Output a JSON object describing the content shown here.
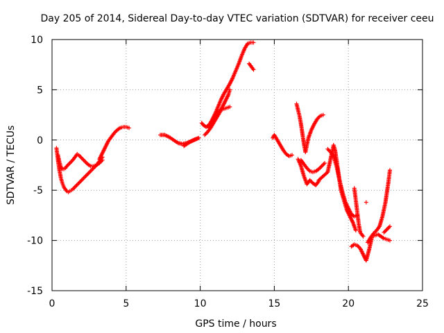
{
  "chart_data": {
    "type": "scatter",
    "title": "Day 205 of 2014, Sidereal Day-to-day VTEC variation (SDTVAR) for receiver ceeu",
    "xlabel": "GPS time / hours",
    "ylabel": "SDTVAR / TECUs",
    "xlim": [
      0,
      25
    ],
    "ylim": [
      -15,
      10
    ],
    "x_ticks": [
      0,
      5,
      10,
      15,
      20,
      25
    ],
    "y_ticks": [
      -15,
      -10,
      -5,
      0,
      5,
      10
    ],
    "x_tick_labels": [
      "0",
      "5",
      "10",
      "15",
      "20",
      "25"
    ],
    "y_tick_labels": [
      "-15",
      "-10",
      "-5",
      "0",
      "5",
      "10"
    ],
    "grid": true,
    "marker": "+",
    "series": [
      {
        "name": "SDTVAR",
        "color": "#ff0000",
        "tracks": [
          {
            "x": [
              0.3,
              0.4,
              0.5,
              0.6,
              0.7,
              0.8,
              0.9,
              1.0,
              1.1,
              1.2,
              1.3,
              1.4,
              1.6,
              1.8,
              2.0,
              2.2,
              2.4,
              2.6,
              2.8,
              3.0,
              3.2,
              3.4
            ],
            "y": [
              -0.8,
              -2.0,
              -3.0,
              -3.8,
              -4.3,
              -4.7,
              -4.9,
              -5.1,
              -5.2,
              -5.1,
              -5.0,
              -4.9,
              -4.6,
              -4.3,
              -4.0,
              -3.7,
              -3.4,
              -3.1,
              -2.8,
              -2.5,
              -2.1,
              -1.7
            ]
          },
          {
            "x": [
              0.4,
              0.5,
              0.6,
              0.7,
              0.8,
              0.9,
              1.0,
              1.2,
              1.4,
              1.6,
              1.7,
              1.8,
              2.0,
              2.2,
              2.4,
              2.6,
              2.8,
              3.0,
              3.2,
              3.4
            ],
            "y": [
              -1.5,
              -2.2,
              -2.7,
              -2.9,
              -2.9,
              -2.8,
              -2.6,
              -2.3,
              -2.0,
              -1.6,
              -1.4,
              -1.5,
              -1.8,
              -2.1,
              -2.4,
              -2.6,
              -2.6,
              -2.5,
              -2.3,
              -2.0
            ]
          },
          {
            "x": [
              3.2,
              3.4,
              3.6,
              3.8,
              4.0,
              4.2,
              4.4,
              4.6,
              4.8,
              5.0,
              5.2
            ],
            "y": [
              -1.9,
              -1.3,
              -0.7,
              -0.1,
              0.3,
              0.7,
              1.0,
              1.2,
              1.3,
              1.3,
              1.2
            ]
          },
          {
            "x": [
              7.3,
              7.6,
              7.9,
              8.2,
              8.5,
              8.8,
              9.1,
              9.4,
              9.7,
              9.9
            ],
            "y": [
              0.5,
              0.5,
              0.3,
              0.0,
              -0.3,
              -0.4,
              -0.3,
              -0.1,
              0.1,
              0.2
            ]
          },
          {
            "x": [
              8.9,
              9.1,
              9.3,
              9.6,
              9.9
            ],
            "y": [
              -0.6,
              -0.4,
              -0.2,
              0.0,
              0.2
            ]
          },
          {
            "x": [
              10.1,
              10.2,
              10.4,
              10.6,
              10.8,
              11.0,
              11.2,
              11.4,
              11.6,
              11.8,
              12.0,
              12.2,
              12.4,
              12.6,
              12.8,
              13.0,
              13.2,
              13.4,
              13.6
            ],
            "y": [
              1.7,
              1.5,
              1.3,
              1.5,
              2.0,
              2.6,
              3.3,
              4.0,
              4.6,
              5.1,
              5.6,
              6.2,
              6.9,
              7.6,
              8.4,
              9.1,
              9.6,
              9.7,
              9.7
            ]
          },
          {
            "x": [
              10.3,
              10.5,
              10.7,
              10.9,
              11.1,
              11.3,
              11.5,
              11.7,
              11.9,
              12.0
            ],
            "y": [
              0.5,
              0.8,
              1.2,
              1.7,
              2.2,
              2.7,
              3.3,
              3.9,
              4.5,
              5.0
            ]
          },
          {
            "x": [
              10.6,
              10.8,
              11.0,
              11.2,
              11.4,
              11.6,
              11.8,
              12.0
            ],
            "y": [
              1.2,
              1.8,
              2.4,
              2.8,
              3.0,
              3.1,
              3.2,
              3.3
            ]
          },
          {
            "x": [
              13.3,
              13.4,
              13.5,
              13.6
            ],
            "y": [
              7.6,
              7.4,
              7.2,
              7.0
            ]
          },
          {
            "x": [
              14.9,
              15.0,
              15.2,
              15.4,
              15.6,
              15.8,
              16.0,
              16.2
            ],
            "y": [
              0.2,
              0.5,
              0.0,
              -0.5,
              -1.0,
              -1.4,
              -1.6,
              -1.5
            ]
          },
          {
            "x": [
              16.5,
              16.6,
              16.7,
              16.8,
              16.9,
              17.0,
              17.1
            ],
            "y": [
              3.6,
              3.0,
              2.4,
              1.6,
              0.6,
              -0.4,
              -1.2
            ]
          },
          {
            "x": [
              16.8,
              17.0,
              17.2,
              17.4,
              17.6,
              17.8,
              18.0,
              18.2,
              18.4
            ],
            "y": [
              -2.0,
              -2.4,
              -2.8,
              -3.1,
              -3.2,
              -3.1,
              -2.9,
              -2.6,
              -2.3
            ]
          },
          {
            "x": [
              17.1,
              17.3,
              17.5,
              17.7,
              17.9,
              18.1,
              18.3
            ],
            "y": [
              -1.2,
              0.2,
              1.0,
              1.6,
              2.1,
              2.4,
              2.5
            ]
          },
          {
            "x": [
              16.6,
              16.8,
              17.0,
              17.2,
              17.4,
              17.6,
              17.8,
              18.0
            ],
            "y": [
              -1.9,
              -2.6,
              -3.6,
              -4.4,
              -4.0,
              -4.3,
              -4.5,
              -4.1
            ]
          },
          {
            "x": [
              18.0,
              18.3,
              18.6,
              18.9,
              19.0,
              19.1,
              19.2,
              19.3,
              19.4,
              19.5,
              19.7,
              19.9,
              20.1,
              20.3,
              20.5
            ],
            "y": [
              -4.0,
              -3.6,
              -3.2,
              -1.2,
              -0.5,
              -1.0,
              -2.0,
              -3.0,
              -4.0,
              -5.0,
              -6.0,
              -7.0,
              -7.6,
              -8.2,
              -9.0
            ]
          },
          {
            "x": [
              18.6,
              18.8,
              19.0,
              19.2,
              19.4,
              19.6,
              19.8,
              20.0,
              20.2,
              20.4,
              20.6
            ],
            "y": [
              -0.9,
              -1.2,
              -1.6,
              -2.6,
              -4.0,
              -5.2,
              -6.2,
              -6.8,
              -7.4,
              -7.6,
              -7.5
            ]
          },
          {
            "x": [
              20.2,
              20.4,
              20.6,
              20.8,
              21.0,
              21.2,
              21.4,
              21.6,
              21.8,
              22.0,
              22.2,
              22.4,
              22.6,
              22.8
            ],
            "y": [
              -10.6,
              -10.4,
              -10.5,
              -10.8,
              -11.4,
              -12.0,
              -10.9,
              -9.6,
              -9.5,
              -9.4,
              -9.6,
              -9.8,
              -9.9,
              -10.0
            ]
          },
          {
            "x": [
              21.3,
              21.5,
              21.7,
              21.9,
              22.1,
              22.3,
              22.5,
              22.7,
              22.8
            ],
            "y": [
              -10.2,
              -9.7,
              -9.3,
              -9.0,
              -8.6,
              -7.6,
              -6.2,
              -4.2,
              -3.0
            ]
          },
          {
            "x": [
              20.4,
              20.5,
              20.6,
              20.7,
              20.8,
              21.0
            ],
            "y": [
              -4.8,
              -6.0,
              -7.2,
              -8.4,
              -9.2,
              -9.6
            ]
          },
          {
            "x": [
              22.4,
              22.6,
              22.8
            ],
            "y": [
              -9.2,
              -8.9,
              -8.6
            ]
          },
          {
            "x": [
              21.2
            ],
            "y": [
              -6.2
            ]
          }
        ]
      }
    ]
  }
}
